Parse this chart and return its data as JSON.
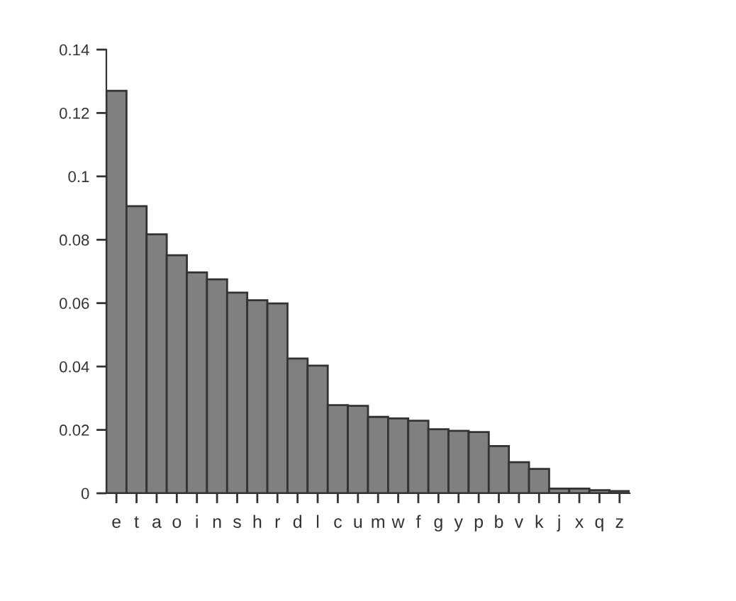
{
  "chart_data": {
    "type": "bar",
    "categories": [
      "e",
      "t",
      "a",
      "o",
      "i",
      "n",
      "s",
      "h",
      "r",
      "d",
      "l",
      "c",
      "u",
      "m",
      "w",
      "f",
      "g",
      "y",
      "p",
      "b",
      "v",
      "k",
      "j",
      "x",
      "q",
      "z"
    ],
    "values": [
      0.127,
      0.0906,
      0.0817,
      0.0751,
      0.0697,
      0.0675,
      0.0633,
      0.0609,
      0.0599,
      0.0425,
      0.0403,
      0.0278,
      0.0276,
      0.0241,
      0.0236,
      0.0229,
      0.0202,
      0.0197,
      0.0193,
      0.0149,
      0.0098,
      0.0077,
      0.0015,
      0.0015,
      0.001,
      0.0007
    ],
    "color": "#808080",
    "ylim": [
      0,
      0.14
    ],
    "yticks": [
      0,
      0.02,
      0.04,
      0.06,
      0.08,
      {
        "value": 0.1,
        "label": "0.1"
      },
      0.12,
      0.14
    ],
    "grid": false,
    "legend": false
  }
}
